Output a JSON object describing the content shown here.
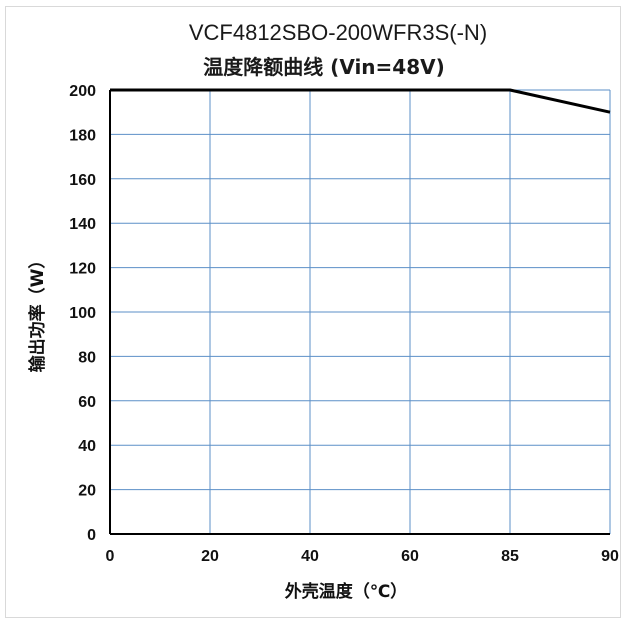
{
  "chart_data": {
    "type": "line",
    "title": "VCF4812SBO-200WFR3S(-N)",
    "subtitle": "温度降额曲线 (Vin=48V)",
    "xlabel": "外壳温度（℃）",
    "ylabel": "输出功率（W）",
    "x_ticks": [
      0,
      20,
      40,
      60,
      85,
      90
    ],
    "y_ticks": [
      0,
      20,
      40,
      60,
      80,
      100,
      120,
      140,
      160,
      180,
      200
    ],
    "xlim": [
      0,
      90
    ],
    "ylim": [
      0,
      200
    ],
    "grid": true,
    "series": [
      {
        "x": [
          0,
          85,
          90
        ],
        "y": [
          200,
          200,
          190
        ]
      }
    ],
    "colors": {
      "line": "#000000",
      "grid": "#5b8fc7",
      "axis": "#000000"
    }
  }
}
